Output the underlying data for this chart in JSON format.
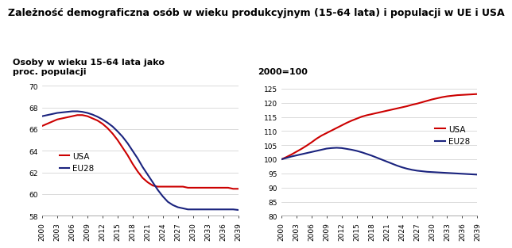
{
  "title": "Zależność demograficzna osób w wieku produkcyjnym (15-64 lata) i populacji w UE i USA",
  "left_label": "Osoby w wieku 15-64 lata jako\nproc. populacji",
  "right_label": "2000=100",
  "years": [
    2000,
    2001,
    2002,
    2003,
    2004,
    2005,
    2006,
    2007,
    2008,
    2009,
    2010,
    2011,
    2012,
    2013,
    2014,
    2015,
    2016,
    2017,
    2018,
    2019,
    2020,
    2021,
    2022,
    2023,
    2024,
    2025,
    2026,
    2027,
    2028,
    2029,
    2030,
    2031,
    2032,
    2033,
    2034,
    2035,
    2036,
    2037,
    2038,
    2039
  ],
  "left_usa": [
    66.3,
    66.5,
    66.7,
    66.9,
    67.0,
    67.1,
    67.2,
    67.3,
    67.3,
    67.2,
    67.0,
    66.8,
    66.5,
    66.1,
    65.6,
    65.0,
    64.3,
    63.6,
    62.8,
    62.1,
    61.5,
    61.1,
    60.8,
    60.7,
    60.7,
    60.7,
    60.7,
    60.7,
    60.7,
    60.6,
    60.6,
    60.6,
    60.6,
    60.6,
    60.6,
    60.6,
    60.6,
    60.6,
    60.5,
    60.5
  ],
  "left_eu28": [
    67.2,
    67.3,
    67.4,
    67.5,
    67.55,
    67.6,
    67.65,
    67.65,
    67.6,
    67.5,
    67.35,
    67.15,
    66.9,
    66.6,
    66.25,
    65.8,
    65.3,
    64.7,
    64.0,
    63.3,
    62.5,
    61.8,
    61.1,
    60.4,
    59.8,
    59.3,
    59.0,
    58.8,
    58.7,
    58.6,
    58.6,
    58.6,
    58.6,
    58.6,
    58.6,
    58.6,
    58.6,
    58.6,
    58.6,
    58.55
  ],
  "right_usa": [
    100,
    100.8,
    101.7,
    102.7,
    103.7,
    104.8,
    106.0,
    107.3,
    108.4,
    109.3,
    110.2,
    111.1,
    112.0,
    112.9,
    113.7,
    114.4,
    115.1,
    115.6,
    116.0,
    116.4,
    116.8,
    117.2,
    117.6,
    118.0,
    118.4,
    118.8,
    119.3,
    119.7,
    120.2,
    120.7,
    121.2,
    121.6,
    122.0,
    122.3,
    122.5,
    122.7,
    122.8,
    122.9,
    123.0,
    123.1
  ],
  "right_eu28": [
    100,
    100.5,
    101.0,
    101.4,
    101.8,
    102.2,
    102.6,
    103.0,
    103.4,
    103.8,
    104.0,
    104.1,
    104.0,
    103.7,
    103.4,
    103.0,
    102.5,
    101.9,
    101.3,
    100.6,
    99.9,
    99.2,
    98.5,
    97.8,
    97.2,
    96.7,
    96.3,
    96.0,
    95.8,
    95.6,
    95.5,
    95.4,
    95.3,
    95.2,
    95.1,
    95.0,
    94.9,
    94.8,
    94.7,
    94.6
  ],
  "color_usa": "#cc0000",
  "color_eu28": "#1a237e",
  "left_ylim": [
    58,
    70
  ],
  "left_yticks": [
    58,
    60,
    62,
    64,
    66,
    68,
    70
  ],
  "right_ylim": [
    80,
    126
  ],
  "right_yticks": [
    80,
    85,
    90,
    95,
    100,
    105,
    110,
    115,
    120,
    125
  ],
  "xtick_years": [
    2000,
    2003,
    2006,
    2009,
    2012,
    2015,
    2018,
    2021,
    2024,
    2027,
    2030,
    2033,
    2036,
    2039
  ],
  "legend_usa": "USA",
  "legend_eu28": "EU28",
  "title_fontsize": 9,
  "label_fontsize": 8,
  "tick_fontsize": 6.5,
  "legend_fontsize": 7.5
}
